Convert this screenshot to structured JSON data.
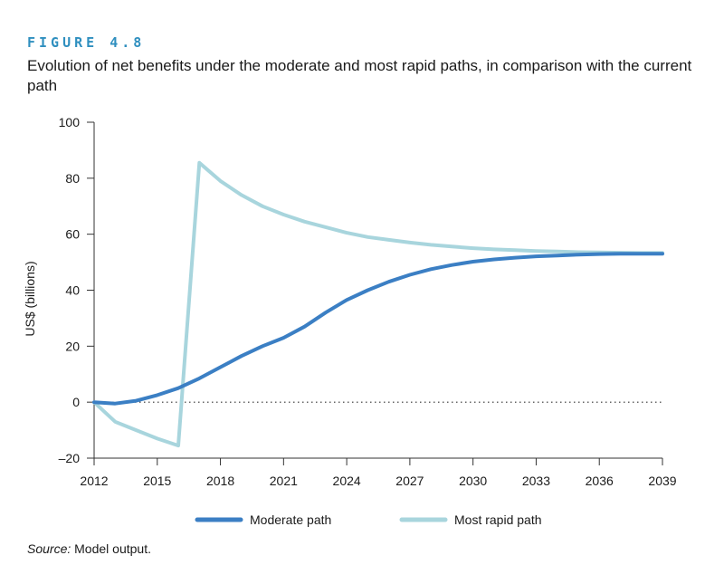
{
  "figure": {
    "label": "FIGURE 4.8",
    "title": "Evolution of net benefits under the moderate and most rapid paths, in comparison with the current path"
  },
  "source": {
    "prefix": "Source:",
    "text": " Model output."
  },
  "colors": {
    "moderate": "#3b7fc4",
    "rapid": "#a8d5dd",
    "axis": "#333333"
  },
  "chart_data": {
    "type": "line",
    "title": "Evolution of net benefits under the moderate and most rapid paths, in comparison with the current path",
    "xlabel": "",
    "ylabel": "US$ (billions)",
    "xlim": [
      2012,
      2039
    ],
    "ylim": [
      -20,
      100
    ],
    "xticks": [
      2012,
      2015,
      2018,
      2021,
      2024,
      2027,
      2030,
      2033,
      2036,
      2039
    ],
    "yticks": [
      -20,
      0,
      20,
      40,
      60,
      80,
      100
    ],
    "zero_line": "dotted",
    "legend_position": "bottom-center",
    "series": [
      {
        "name": "Moderate path",
        "x": [
          2012,
          2013,
          2014,
          2015,
          2016,
          2017,
          2018,
          2019,
          2020,
          2021,
          2022,
          2023,
          2024,
          2025,
          2026,
          2027,
          2028,
          2029,
          2030,
          2031,
          2032,
          2033,
          2034,
          2035,
          2036,
          2037,
          2038,
          2039
        ],
        "y": [
          0,
          -0.5,
          0.5,
          2.5,
          5,
          8.5,
          12.5,
          16.5,
          20,
          23,
          27,
          32,
          36.5,
          40,
          43,
          45.5,
          47.5,
          49,
          50.2,
          51,
          51.6,
          52.1,
          52.4,
          52.7,
          52.9,
          53,
          53,
          53
        ]
      },
      {
        "name": "Most rapid path",
        "x": [
          2012,
          2013,
          2014,
          2015,
          2016,
          2017,
          2018,
          2019,
          2020,
          2021,
          2022,
          2023,
          2024,
          2025,
          2026,
          2027,
          2028,
          2029,
          2030,
          2031,
          2032,
          2033,
          2034,
          2035,
          2036,
          2037,
          2038,
          2039
        ],
        "y": [
          0,
          -7,
          -10,
          -13,
          -15.5,
          85.5,
          79,
          74,
          70,
          67,
          64.5,
          62.5,
          60.5,
          59,
          58,
          57,
          56.2,
          55.6,
          55,
          54.6,
          54.3,
          54,
          53.8,
          53.6,
          53.5,
          53.4,
          53.3,
          53.3
        ]
      }
    ]
  }
}
